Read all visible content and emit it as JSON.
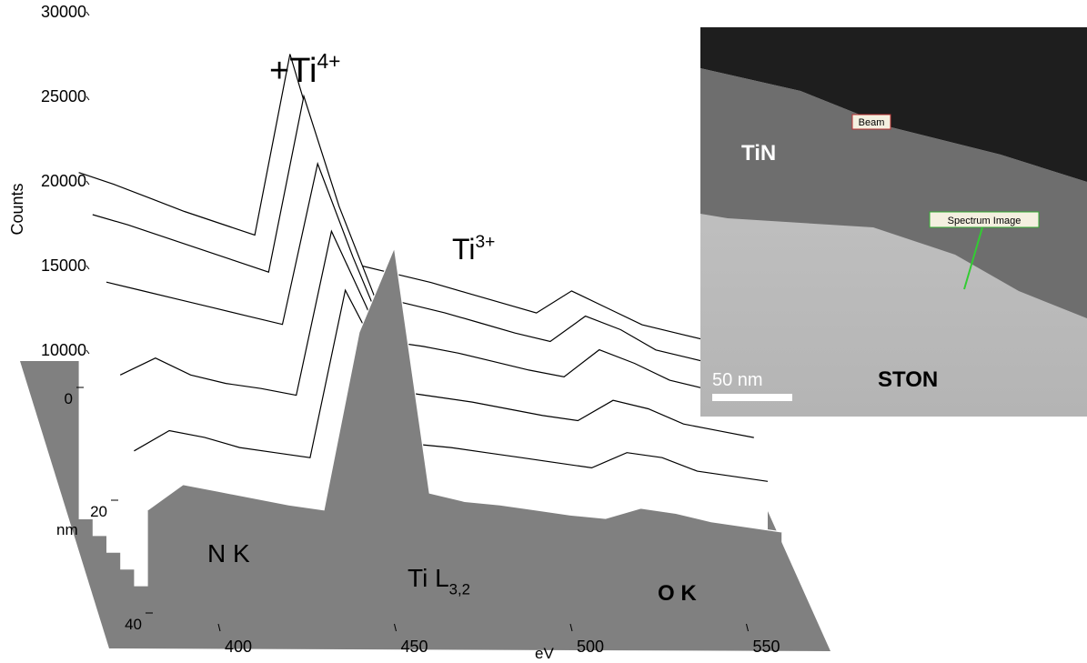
{
  "chart_data": {
    "type": "waterfall",
    "xlabel": "eV",
    "ylabel": "Counts",
    "zlabel": "nm",
    "x": [
      380,
      390,
      400,
      410,
      420,
      430,
      440,
      450,
      460,
      470,
      480,
      490,
      500,
      510,
      520,
      530,
      540,
      550,
      560
    ],
    "xlim": [
      380,
      560
    ],
    "xticks": [
      400,
      450,
      500,
      550
    ],
    "ylim": [
      0,
      30000
    ],
    "yticks": [
      10000,
      15000,
      20000,
      25000,
      30000
    ],
    "zlim": [
      0,
      40
    ],
    "zticks": [
      0,
      20,
      40
    ],
    "series": [
      {
        "depth": 0,
        "values": [
          20500,
          19800,
          19000,
          18200,
          17500,
          16800,
          27500,
          20500,
          15000,
          14500,
          14000,
          13400,
          12800,
          12200,
          13500,
          12500,
          11500,
          11000,
          10500
        ]
      },
      {
        "depth": 8,
        "values": [
          19000,
          18400,
          17700,
          17000,
          16300,
          15600,
          26000,
          19500,
          14200,
          13700,
          13200,
          12600,
          12000,
          11500,
          13000,
          12200,
          11000,
          10500,
          10000
        ]
      },
      {
        "depth": 16,
        "values": [
          16000,
          15500,
          15000,
          14500,
          14000,
          13500,
          23000,
          17500,
          12500,
          12200,
          11800,
          11300,
          10800,
          10400,
          12000,
          11200,
          10200,
          9700,
          9200
        ]
      },
      {
        "depth": 24,
        "values": [
          11500,
          12500,
          11500,
          11000,
          10700,
          10300,
          20000,
          15500,
          10500,
          10200,
          9900,
          9500,
          9100,
          8800,
          10000,
          9500,
          8600,
          8200,
          7800
        ]
      },
      {
        "depth": 32,
        "values": [
          8000,
          9200,
          8800,
          8200,
          7900,
          7600,
          17500,
          13500,
          8400,
          8200,
          7900,
          7600,
          7300,
          7000,
          7900,
          7600,
          6800,
          6500,
          6200
        ]
      },
      {
        "depth": 40,
        "values": [
          5500,
          7000,
          6600,
          6200,
          5800,
          5500,
          16000,
          21000,
          6500,
          6000,
          5800,
          5500,
          5200,
          5000,
          5600,
          5300,
          4800,
          4500,
          4200
        ]
      }
    ],
    "annotations": [
      {
        "text": "+Ti",
        "sup": "4+"
      },
      {
        "text": "Ti",
        "sup": "3+"
      },
      {
        "text": "N K"
      },
      {
        "text": "Ti L",
        "sub": "3,2"
      },
      {
        "text": "O K"
      }
    ],
    "inset": {
      "labels": [
        "TiN",
        "STON"
      ],
      "scale_bar": "50 nm",
      "markers": [
        "Beam",
        "Spectrum Image"
      ]
    }
  }
}
